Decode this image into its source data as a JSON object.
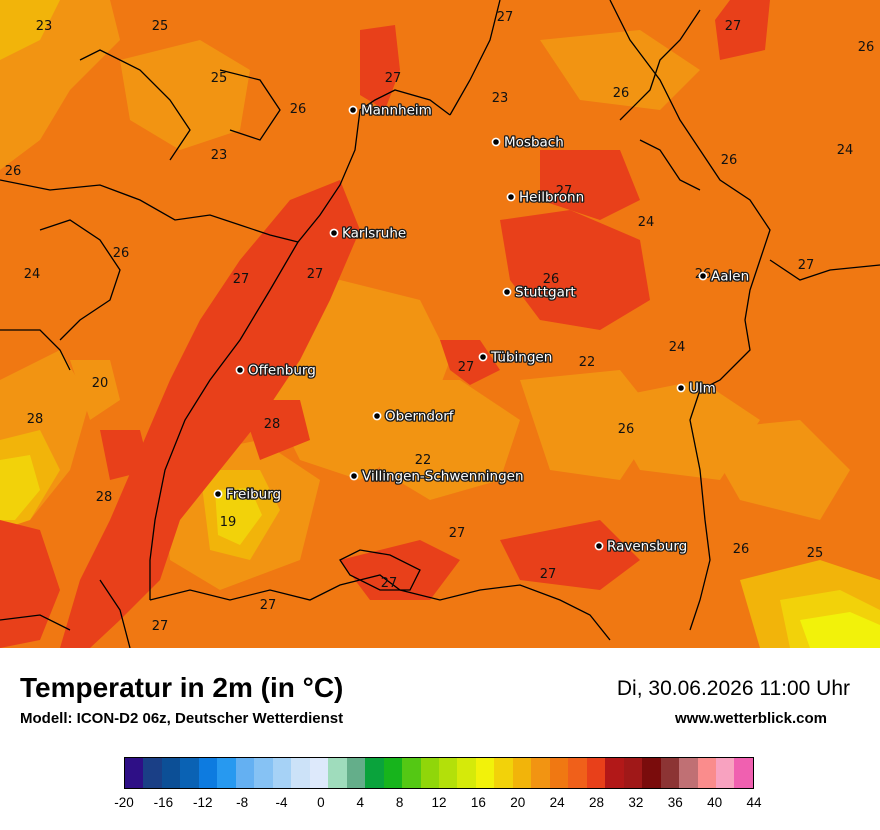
{
  "title": "Temperatur in 2m (in °C)",
  "model": "Modell: ICON-D2 06z, Deutscher Wetterdienst",
  "datetime": "Di, 30.06.2026 11:00 Uhr",
  "website": "www.wetterblick.com",
  "cities": [
    {
      "name": "Mannheim"
    },
    {
      "name": "Mosbach"
    },
    {
      "name": "Heilbronn"
    },
    {
      "name": "Karlsruhe"
    },
    {
      "name": "Aalen"
    },
    {
      "name": "Stuttgart"
    },
    {
      "name": "Tübingen"
    },
    {
      "name": "Offenburg"
    },
    {
      "name": "Ulm"
    },
    {
      "name": "Oberndorf"
    },
    {
      "name": "Villingen-Schwenningen"
    },
    {
      "name": "Freiburg"
    },
    {
      "name": "Ravensburg"
    }
  ],
  "temperature_labels": [
    "23",
    "25",
    "27",
    "27",
    "26",
    "25",
    "27",
    "26",
    "26",
    "23",
    "23",
    "26",
    "24",
    "26",
    "27",
    "24",
    "26",
    "24",
    "26",
    "27",
    "27",
    "27",
    "26",
    "24",
    "27",
    "20",
    "22",
    "28",
    "28",
    "22",
    "26",
    "28",
    "19",
    "27",
    "27",
    "26",
    "25",
    "27",
    "27",
    "27"
  ],
  "legend": {
    "colors": [
      "#2e0f86",
      "#1a3f86",
      "#0c4f96",
      "#0a62b4",
      "#0d7be0",
      "#2799f0",
      "#64b0f2",
      "#86c2f4",
      "#a6d2f6",
      "#cce2f8",
      "#dde9fb",
      "#9fdcbc",
      "#64ae8a",
      "#0aa33c",
      "#17b41c",
      "#54c814",
      "#90d60a",
      "#b3e00a",
      "#d5ea0a",
      "#f2f20a",
      "#f2d20a",
      "#f2b40a",
      "#f29412",
      "#f07812",
      "#f0601a",
      "#e8401a",
      "#b21818",
      "#a01818",
      "#7a0c0c",
      "#8c3434",
      "#c07074",
      "#fa8c8c",
      "#f8a2c0",
      "#f060b0"
    ],
    "ticks": [
      "-20",
      "-16",
      "-12",
      "-8",
      "-4",
      "0",
      "4",
      "8",
      "12",
      "16",
      "20",
      "24",
      "28",
      "32",
      "36",
      "40",
      "44"
    ]
  }
}
